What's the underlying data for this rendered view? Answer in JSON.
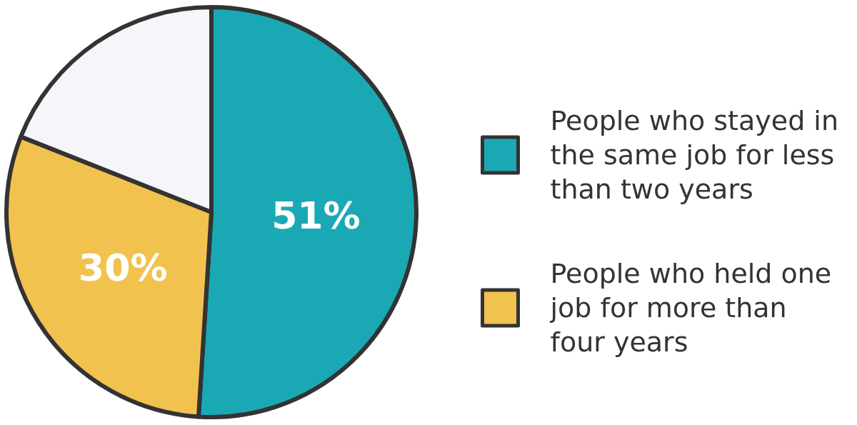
{
  "chart_data": {
    "type": "pie",
    "categories": [
      "People who stayed in the same job for less than two years",
      "People who held one job for more than four years",
      null
    ],
    "values": [
      51,
      30,
      19
    ],
    "colors": [
      "#1aa9b4",
      "#f2c24f",
      "#f5f6fa"
    ],
    "value_labels": [
      "51%",
      "30%",
      null
    ],
    "legend": "right"
  }
}
